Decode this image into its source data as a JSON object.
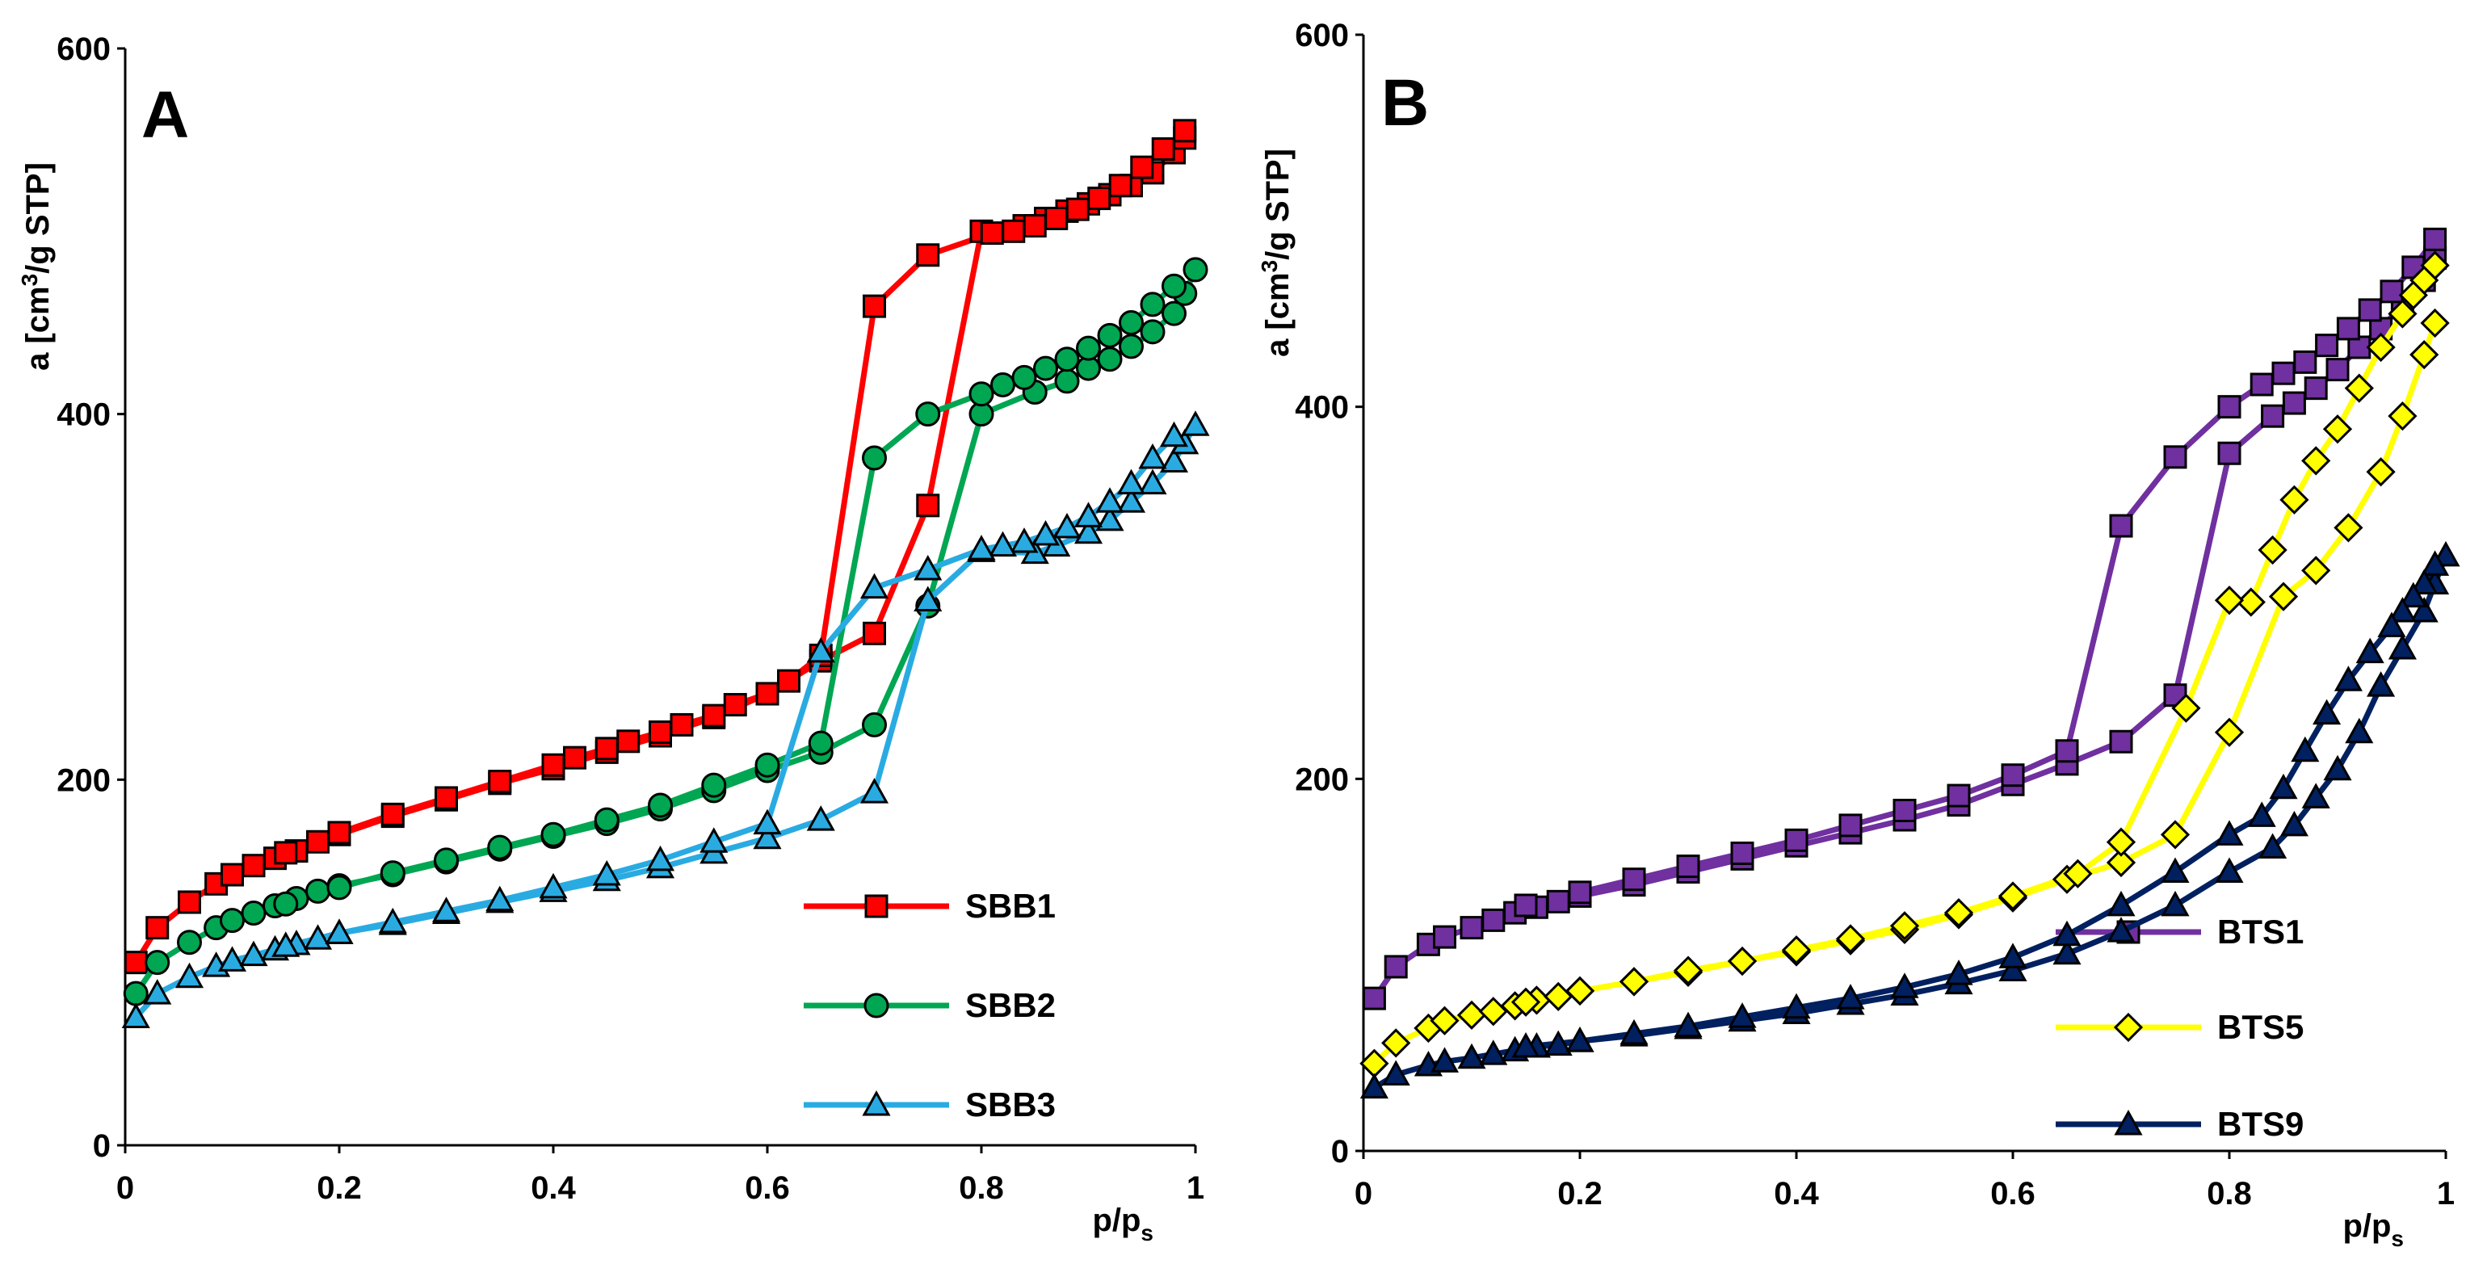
{
  "chart_data": [
    {
      "panel_label": "A",
      "type": "line",
      "xlabel_main": "p/p",
      "xlabel_sub": "s",
      "ylabel_pre": "a [cm",
      "ylabel_sup": "3",
      "ylabel_post": "/g STP]",
      "xlim": [
        0,
        1
      ],
      "ylim": [
        0,
        600
      ],
      "xticks": [
        0,
        0.2,
        0.4,
        0.6,
        0.8,
        1
      ],
      "xtick_labels": [
        "0",
        "0.2",
        "0.4",
        "0.6",
        "0.8",
        "1"
      ],
      "yticks": [
        0,
        200,
        400,
        600
      ],
      "ytick_labels": [
        "0",
        "200",
        "400",
        "600"
      ],
      "grid": false,
      "legend_position": "bottom-right",
      "series": [
        {
          "name": "SBB1",
          "color": "#ff0000",
          "marker": "square",
          "adsorption": {
            "x": [
              0.01,
              0.03,
              0.06,
              0.085,
              0.1,
              0.12,
              0.14,
              0.16,
              0.18,
              0.2,
              0.25,
              0.3,
              0.35,
              0.4,
              0.45,
              0.5,
              0.55,
              0.6,
              0.65,
              0.7,
              0.75,
              0.8,
              0.84,
              0.86,
              0.88,
              0.9,
              0.92,
              0.94,
              0.96,
              0.98,
              0.99
            ],
            "y": [
              100,
              119,
              133,
              143,
              148,
              153,
              157,
              161,
              166,
              170,
              180,
              189,
              198,
              206,
              215,
              224,
              234,
              247,
              265,
              280,
              350,
              500,
              503,
              507,
              511,
              515,
              520,
              525,
              532,
              543,
              551
            ]
          },
          "desorption": {
            "x": [
              0.99,
              0.97,
              0.95,
              0.93,
              0.91,
              0.89,
              0.87,
              0.85,
              0.83,
              0.81,
              0.75,
              0.7,
              0.65,
              0.62,
              0.6,
              0.57,
              0.55,
              0.52,
              0.5,
              0.47,
              0.45,
              0.42,
              0.4,
              0.35,
              0.3,
              0.25,
              0.2,
              0.15
            ],
            "y": [
              555,
              545,
              535,
              525,
              518,
              512,
              507,
              503,
              500,
              499,
              487,
              459,
              268,
              254,
              247,
              241,
              235,
              230,
              226,
              221,
              217,
              212,
              208,
              199,
              190,
              181,
              171,
              160
            ]
          }
        },
        {
          "name": "SBB2",
          "color": "#00a651",
          "marker": "circle",
          "adsorption": {
            "x": [
              0.01,
              0.03,
              0.06,
              0.085,
              0.1,
              0.12,
              0.14,
              0.16,
              0.18,
              0.2,
              0.25,
              0.3,
              0.35,
              0.4,
              0.45,
              0.5,
              0.55,
              0.6,
              0.65,
              0.7,
              0.75,
              0.8,
              0.85,
              0.88,
              0.9,
              0.92,
              0.94,
              0.96,
              0.98,
              0.99,
              1.0
            ],
            "y": [
              83,
              100,
              111,
              119,
              123,
              127,
              131,
              135,
              139,
              142,
              148,
              155,
              162,
              169,
              176,
              184,
              194,
              205,
              215,
              230,
              295,
              400,
              412,
              418,
              425,
              430,
              437,
              445,
              455,
              466,
              479
            ]
          },
          "desorption": {
            "x": [
              0.98,
              0.96,
              0.94,
              0.92,
              0.9,
              0.88,
              0.86,
              0.84,
              0.82,
              0.8,
              0.75,
              0.7,
              0.65,
              0.6,
              0.55,
              0.5,
              0.45,
              0.4,
              0.35,
              0.3,
              0.25,
              0.2,
              0.15
            ],
            "y": [
              470,
              460,
              450,
              443,
              436,
              430,
              425,
              420,
              416,
              411,
              400,
              376,
              220,
              208,
              197,
              186,
              178,
              170,
              163,
              156,
              149,
              141,
              132
            ]
          }
        },
        {
          "name": "SBB3",
          "color": "#29abe2",
          "marker": "triangle",
          "adsorption": {
            "x": [
              0.01,
              0.03,
              0.06,
              0.085,
              0.1,
              0.12,
              0.14,
              0.16,
              0.18,
              0.2,
              0.25,
              0.3,
              0.35,
              0.4,
              0.45,
              0.5,
              0.55,
              0.6,
              0.65,
              0.7,
              0.75,
              0.8,
              0.85,
              0.87,
              0.9,
              0.92,
              0.94,
              0.96,
              0.98,
              0.99,
              1.0
            ],
            "y": [
              70,
              83,
              92,
              98,
              101,
              104,
              107,
              110,
              113,
              116,
              121,
              127,
              133,
              139,
              145,
              152,
              160,
              168,
              178,
              193,
              298,
              325,
              324,
              328,
              335,
              342,
              352,
              362,
              374,
              384,
              394
            ]
          },
          "desorption": {
            "x": [
              0.98,
              0.96,
              0.94,
              0.92,
              0.9,
              0.88,
              0.86,
              0.84,
              0.82,
              0.8,
              0.75,
              0.7,
              0.65,
              0.6,
              0.55,
              0.5,
              0.45,
              0.4,
              0.35,
              0.3,
              0.25,
              0.2,
              0.15
            ],
            "y": [
              388,
              376,
              362,
              352,
              344,
              338,
              334,
              330,
              328,
              326,
              315,
              305,
              270,
              176,
              166,
              156,
              148,
              141,
              134,
              128,
              122,
              116,
              109
            ]
          }
        }
      ]
    },
    {
      "panel_label": "B",
      "type": "line",
      "xlabel_main": "p/p",
      "xlabel_sub": "s",
      "ylabel_pre": "a [cm",
      "ylabel_sup": "3",
      "ylabel_post": "/g STP]",
      "xlim": [
        0,
        1
      ],
      "ylim": [
        0,
        600
      ],
      "xticks": [
        0,
        0.2,
        0.4,
        0.6,
        0.8,
        1
      ],
      "xtick_labels": [
        "0",
        "0.2",
        "0.4",
        "0.6",
        "0.8",
        "1"
      ],
      "yticks": [
        0,
        200,
        400,
        600
      ],
      "ytick_labels": [
        "0",
        "200",
        "400",
        "600"
      ],
      "grid": false,
      "legend_position": "bottom-right",
      "series": [
        {
          "name": "BTS1",
          "color": "#7030a0",
          "marker": "square",
          "adsorption": {
            "x": [
              0.01,
              0.03,
              0.06,
              0.075,
              0.1,
              0.12,
              0.14,
              0.16,
              0.18,
              0.2,
              0.25,
              0.3,
              0.35,
              0.4,
              0.45,
              0.5,
              0.55,
              0.6,
              0.65,
              0.7,
              0.75,
              0.8,
              0.84,
              0.86,
              0.88,
              0.9,
              0.92,
              0.94,
              0.96,
              0.98,
              0.99
            ],
            "y": [
              82,
              99,
              111,
              115,
              120,
              124,
              128,
              131,
              134,
              137,
              143,
              150,
              157,
              164,
              171,
              178,
              186,
              197,
              208,
              220,
              245,
              375,
              395,
              402,
              410,
              420,
              432,
              442,
              455,
              468,
              480
            ]
          },
          "desorption": {
            "x": [
              0.99,
              0.97,
              0.95,
              0.93,
              0.91,
              0.89,
              0.87,
              0.85,
              0.83,
              0.8,
              0.75,
              0.7,
              0.65,
              0.6,
              0.55,
              0.5,
              0.45,
              0.4,
              0.35,
              0.3,
              0.25,
              0.2,
              0.15
            ],
            "y": [
              490,
              475,
              462,
              452,
              442,
              433,
              424,
              418,
              412,
              400,
              373,
              336,
              215,
              202,
              191,
              183,
              175,
              167,
              160,
              153,
              146,
              139,
              132
            ]
          }
        },
        {
          "name": "BTS5",
          "color": "#ffff00",
          "marker": "diamond",
          "adsorption": {
            "x": [
              0.01,
              0.03,
              0.06,
              0.075,
              0.1,
              0.12,
              0.14,
              0.16,
              0.18,
              0.2,
              0.25,
              0.3,
              0.35,
              0.4,
              0.45,
              0.5,
              0.55,
              0.6,
              0.65,
              0.7,
              0.75,
              0.8,
              0.85,
              0.88,
              0.91,
              0.94,
              0.96,
              0.98,
              0.99
            ],
            "y": [
              47,
              58,
              66,
              70,
              73,
              75,
              78,
              81,
              83,
              86,
              91,
              96,
              102,
              107,
              113,
              119,
              127,
              136,
              146,
              155,
              170,
              225,
              298,
              312,
              335,
              365,
              395,
              428,
              445
            ]
          },
          "desorption": {
            "x": [
              0.99,
              0.98,
              0.97,
              0.96,
              0.94,
              0.92,
              0.9,
              0.88,
              0.86,
              0.84,
              0.82,
              0.8,
              0.76,
              0.7,
              0.66,
              0.6,
              0.55,
              0.5,
              0.45,
              0.4,
              0.35,
              0.3,
              0.25,
              0.2,
              0.15
            ],
            "y": [
              476,
              468,
              460,
              450,
              432,
              410,
              388,
              371,
              350,
              323,
              295,
              296,
              238,
              166,
              149,
              137,
              128,
              121,
              114,
              108,
              102,
              97,
              91,
              86,
              80
            ]
          }
        },
        {
          "name": "BTS9",
          "color": "#002060",
          "marker": "triangle",
          "adsorption": {
            "x": [
              0.01,
              0.03,
              0.06,
              0.075,
              0.1,
              0.12,
              0.14,
              0.16,
              0.18,
              0.2,
              0.25,
              0.3,
              0.35,
              0.4,
              0.45,
              0.5,
              0.55,
              0.6,
              0.65,
              0.7,
              0.75,
              0.8,
              0.84,
              0.86,
              0.88,
              0.9,
              0.92,
              0.94,
              0.96,
              0.98,
              0.99,
              1.0
            ],
            "y": [
              34,
              41,
              46,
              48,
              50,
              52,
              54,
              56,
              57,
              59,
              62,
              66,
              70,
              74,
              79,
              84,
              90,
              97,
              106,
              118,
              132,
              150,
              163,
              175,
              190,
              205,
              225,
              250,
              270,
              290,
              305,
              320
            ]
          },
          "desorption": {
            "x": [
              0.99,
              0.98,
              0.97,
              0.96,
              0.95,
              0.93,
              0.91,
              0.89,
              0.87,
              0.85,
              0.83,
              0.8,
              0.75,
              0.7,
              0.65,
              0.6,
              0.55,
              0.5,
              0.45,
              0.4,
              0.35,
              0.3,
              0.25,
              0.2,
              0.15
            ],
            "y": [
              315,
              305,
              298,
              290,
              282,
              268,
              253,
              235,
              215,
              195,
              180,
              170,
              150,
              132,
              116,
              104,
              95,
              88,
              82,
              77,
              72,
              67,
              63,
              59,
              56
            ]
          }
        }
      ]
    }
  ]
}
